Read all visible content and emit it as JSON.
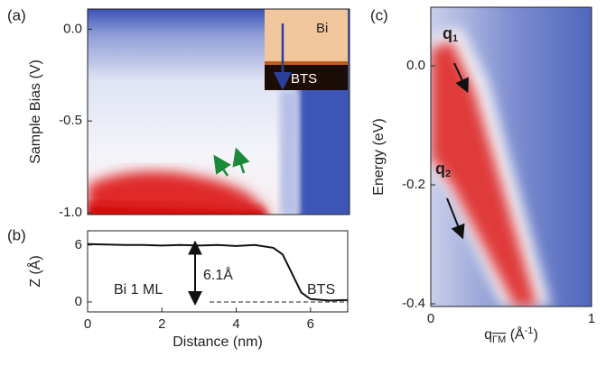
{
  "chart_data": [
    {
      "type": "heatmap",
      "panel_label": "(a)",
      "ylabel": "Sample Bias (V)",
      "ylim": [
        -1.01,
        0.11
      ],
      "yticks": [
        {
          "value": 0,
          "label": "0.0"
        },
        {
          "value": -0.5,
          "label": "-0.5"
        },
        {
          "value": -1.0,
          "label": "-1.0"
        }
      ],
      "annotations": [
        "Bi",
        "BTS"
      ]
    },
    {
      "type": "line",
      "panel_label": "(b)",
      "xlabel": "Distance (nm)",
      "ylabel": "Z (Å)",
      "x": [
        0,
        0.5,
        1,
        1.5,
        2,
        2.5,
        3,
        3.5,
        4,
        4.5,
        5,
        5.25,
        5.5,
        5.75,
        6,
        6.5,
        7
      ],
      "values": [
        6.1,
        6.05,
        6.0,
        6.0,
        5.95,
        6.0,
        5.95,
        6.0,
        5.9,
        6.0,
        5.7,
        5.0,
        3.0,
        1.0,
        0.3,
        0.15,
        0.2
      ],
      "color": "#111111",
      "xlim": [
        0,
        7
      ],
      "xticks": [
        0,
        2,
        4,
        6
      ],
      "ylim": [
        -1.05,
        7.5
      ],
      "yticks": [
        0,
        6
      ],
      "annotations": [
        "6.1Å",
        "Bi 1 ML",
        "BTS"
      ]
    },
    {
      "type": "heatmap",
      "panel_label": "(c)",
      "ylabel": "Energy (eV)",
      "xlabel_parts": [
        "q",
        "ΓM",
        " (Å",
        "-1",
        ")"
      ],
      "xlim": [
        0,
        1
      ],
      "xticks": [
        0,
        1
      ],
      "ylim": [
        -0.4045,
        0.0985
      ],
      "yticks": [
        {
          "value": 0,
          "label": "0.0"
        },
        {
          "value": -0.2,
          "label": "-0.2"
        },
        {
          "value": -0.4,
          "label": "-0.4"
        }
      ],
      "annotations": [
        {
          "main": "q",
          "sub": "1"
        },
        {
          "main": "q",
          "sub": "2"
        }
      ]
    }
  ]
}
